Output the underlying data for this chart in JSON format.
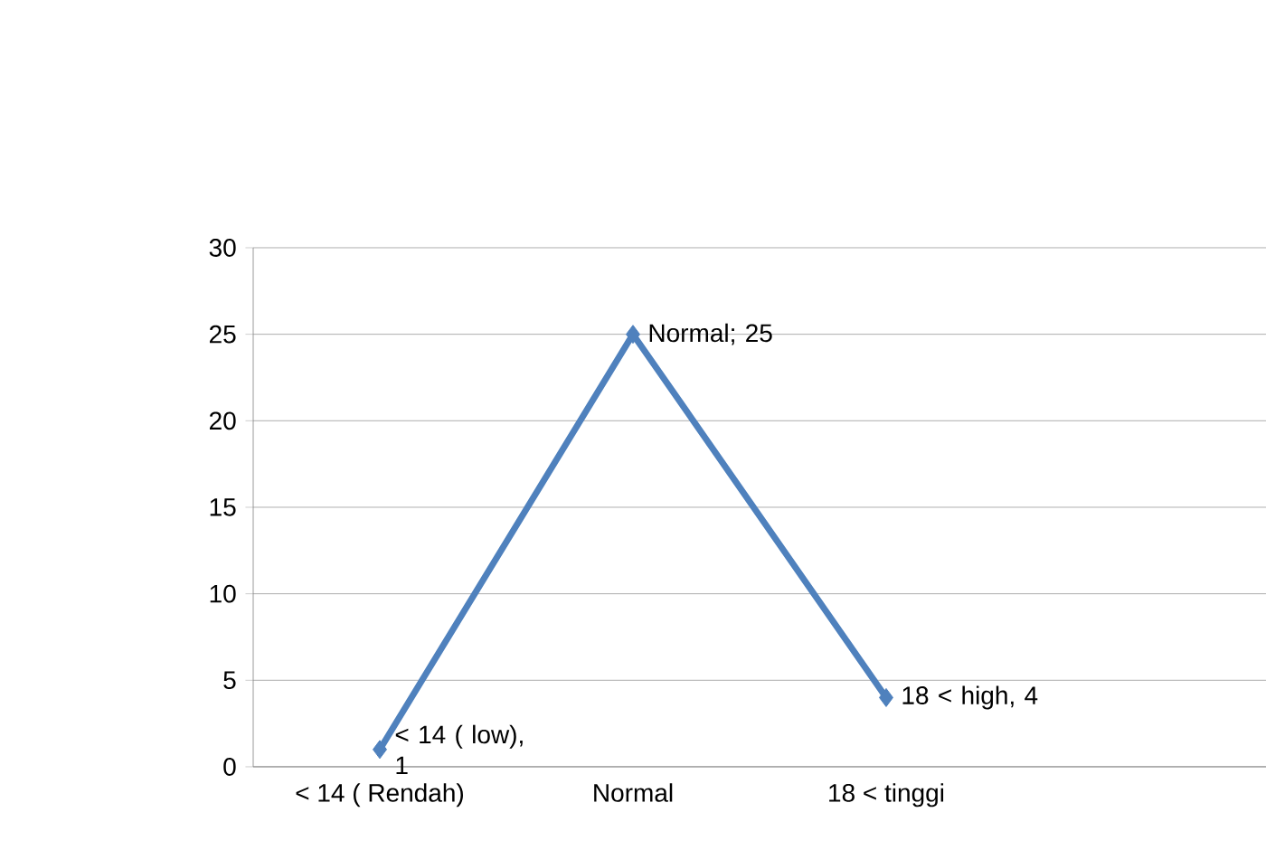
{
  "chart_data": {
    "type": "line",
    "categories": [
      "< 14 ( Rendah)",
      "Normal",
      "18 < tinggi",
      null
    ],
    "series": [
      {
        "color": "#4f81bd",
        "values": [
          1,
          25,
          4,
          null
        ],
        "value_labels": [
          "< 14 ( low), 1",
          "Normal; 25",
          "18 < high, 4",
          null
        ]
      }
    ],
    "ylim": [
      0,
      30
    ],
    "yticks": [
      0,
      5,
      10,
      15,
      20,
      25,
      30
    ],
    "grid": "y",
    "marker": "diamond",
    "line_style": "solid"
  }
}
